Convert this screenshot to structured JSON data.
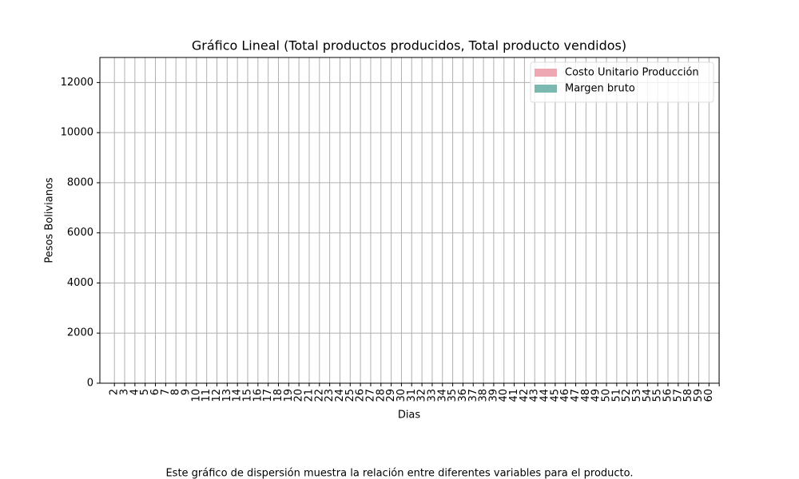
{
  "chart_data": {
    "type": "bar",
    "title": "Gráfico Lineal (Total productos producidos, Total producto vendidos)",
    "x_label": "Dias",
    "y_label": "Pesos Bolivianos",
    "caption": "Este gráfico de dispersión muestra la relación entre diferentes variables para el producto.",
    "categories": [
      "2",
      "3",
      "4",
      "5",
      "6",
      "7",
      "8",
      "9",
      "10",
      "11",
      "12",
      "13",
      "14",
      "15",
      "16",
      "17",
      "18",
      "19",
      "20",
      "21",
      "22",
      "23",
      "24",
      "25",
      "26",
      "27",
      "28",
      "29",
      "30",
      "31",
      "32",
      "33",
      "34",
      "35",
      "36",
      "37",
      "38",
      "39",
      "40",
      "41",
      "42",
      "43",
      "44",
      "45",
      "46",
      "47",
      "48",
      "49",
      "50",
      "51",
      "52",
      "53",
      "54",
      "55",
      "56",
      "57",
      "58",
      "59",
      "60",
      null
    ],
    "series": [
      {
        "name": "Costo Unitario Producción",
        "color": "#eea8b3",
        "values": [
          0,
          0,
          0,
          0,
          0,
          0,
          0,
          0,
          0,
          0,
          0,
          0,
          0,
          0,
          0,
          0,
          0,
          0,
          0,
          0,
          0,
          0,
          0,
          0,
          0,
          0,
          0,
          0,
          0,
          0,
          0,
          0,
          0,
          0,
          0,
          0,
          0,
          0,
          0,
          0,
          0,
          0,
          0,
          0,
          0,
          0,
          0,
          0,
          0,
          0,
          0,
          0,
          0,
          0,
          0,
          0,
          0,
          0,
          0,
          0
        ]
      },
      {
        "name": "Margen bruto",
        "color": "#7ab8b0",
        "values": [
          0,
          0,
          0,
          0,
          0,
          0,
          0,
          0,
          0,
          0,
          0,
          0,
          0,
          0,
          0,
          0,
          0,
          0,
          0,
          0,
          0,
          0,
          0,
          0,
          0,
          0,
          0,
          0,
          0,
          0,
          0,
          0,
          0,
          0,
          0,
          0,
          0,
          0,
          0,
          0,
          0,
          0,
          0,
          0,
          0,
          0,
          0,
          0,
          0,
          0,
          0,
          0,
          0,
          0,
          0,
          0,
          0,
          0,
          0,
          0
        ]
      }
    ],
    "ylim": [
      0,
      13000
    ],
    "yticks": [
      0,
      2000,
      4000,
      6000,
      8000,
      10000,
      12000
    ],
    "grid": true,
    "legend": "upper right"
  }
}
